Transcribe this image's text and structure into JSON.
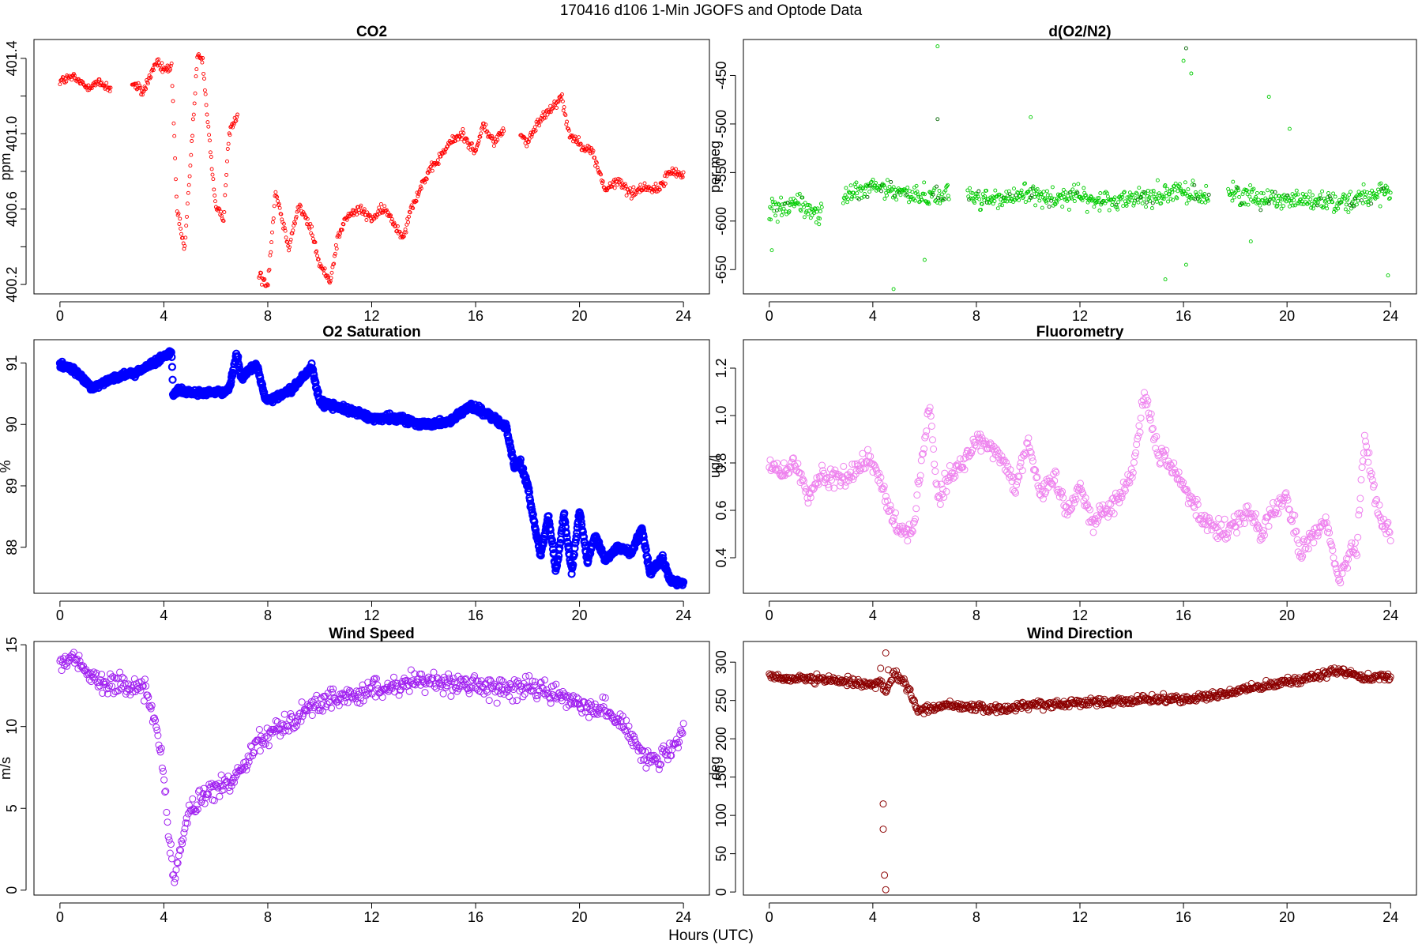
{
  "figure": {
    "title": "170416   d106   1-Min  JGOFS and Optode Data",
    "xlabel": "Hours (UTC)"
  },
  "chart_data": [
    {
      "type": "scatter",
      "title": "CO2",
      "ylabel": "ppm",
      "color": "#ff0000",
      "marker": "small-circle",
      "xlim": [
        -1,
        25
      ],
      "ylim": [
        400.15,
        401.5
      ],
      "xticks": [
        0,
        4,
        8,
        12,
        16,
        20,
        24
      ],
      "yticks": [
        400.2,
        400.4,
        400.6,
        400.8,
        401.0,
        401.2,
        401.4
      ],
      "ytick_labels": [
        "400.2",
        "",
        "400.6",
        "",
        "401.0",
        "",
        "401.4"
      ],
      "gaps": [
        [
          1.95,
          2.75
        ],
        [
          6.85,
          7.65
        ],
        [
          17.1,
          17.7
        ]
      ],
      "x": [
        0,
        0.5,
        1,
        1.5,
        1.95,
        2.75,
        3.2,
        3.7,
        4,
        4.3,
        4.5,
        4.8,
        5,
        5.3,
        5.5,
        5.7,
        6,
        6.3,
        6.5,
        6.85,
        7.65,
        8,
        8.3,
        8.8,
        9.2,
        9.7,
        10,
        10.4,
        10.7,
        11,
        11.5,
        12,
        12.5,
        13.2,
        13.5,
        14,
        14.5,
        15,
        15.5,
        16,
        16.3,
        16.7,
        17.1,
        17.7,
        18,
        18.5,
        19,
        19.3,
        19.6,
        20,
        20.5,
        21,
        21.5,
        22,
        22.5,
        23,
        23.5,
        24
      ],
      "y": [
        401.28,
        401.3,
        401.25,
        401.27,
        401.24,
        401.27,
        401.22,
        401.38,
        401.34,
        401.35,
        400.6,
        400.38,
        400.8,
        401.42,
        401.38,
        401.05,
        400.6,
        400.55,
        401.0,
        401.1,
        400.25,
        400.2,
        400.7,
        400.4,
        400.62,
        400.48,
        400.3,
        400.22,
        400.45,
        400.55,
        400.6,
        400.55,
        400.6,
        400.45,
        400.6,
        400.75,
        400.85,
        400.95,
        401.0,
        400.9,
        401.05,
        400.95,
        401.03,
        401.0,
        400.95,
        401.08,
        401.15,
        401.2,
        401.0,
        400.95,
        400.9,
        400.7,
        400.75,
        400.68,
        400.72,
        400.7,
        400.8,
        400.78
      ],
      "noise": 0.025
    },
    {
      "type": "scatter",
      "title": "d(O2/N2)",
      "ylabel": "per meg",
      "color": "#00cc00",
      "marker": "small-circle",
      "xlim": [
        -1,
        25
      ],
      "ylim": [
        -675,
        -413
      ],
      "xticks": [
        0,
        4,
        8,
        12,
        16,
        20,
        24
      ],
      "yticks": [
        -650,
        -600,
        -550,
        -500,
        -450
      ],
      "ytick_labels": [
        "-650",
        "-600",
        "-550",
        "-500",
        "-450"
      ],
      "gaps": [
        [
          2.05,
          2.85
        ],
        [
          6.95,
          7.65
        ],
        [
          17.0,
          17.7
        ]
      ],
      "x": [
        0,
        1,
        2.05,
        2.85,
        4,
        5,
        6,
        6.95,
        7.65,
        9,
        10,
        11,
        12,
        12.5,
        13.5,
        14.5,
        15.5,
        16,
        17.0,
        17.7,
        18.5,
        19.5,
        20.5,
        21.5,
        22.5,
        23,
        24
      ],
      "y": [
        -590,
        -580,
        -595,
        -575,
        -565,
        -570,
        -575,
        -570,
        -575,
        -578,
        -572,
        -576,
        -574,
        -580,
        -578,
        -575,
        -572,
        -570,
        -575,
        -570,
        -575,
        -576,
        -578,
        -580,
        -578,
        -574,
        -572
      ],
      "noise": 10,
      "outliers": [
        [
          6.5,
          -420
        ],
        [
          6.5,
          -495
        ],
        [
          16.1,
          -422
        ],
        [
          16.3,
          -448
        ],
        [
          16.0,
          -435
        ],
        [
          15.3,
          -660
        ],
        [
          16.1,
          -645
        ],
        [
          4.8,
          -670
        ],
        [
          10.1,
          -493
        ],
        [
          19.3,
          -472
        ],
        [
          20.1,
          -505
        ],
        [
          6.0,
          -640
        ],
        [
          18.6,
          -621
        ],
        [
          23.9,
          -656
        ],
        [
          0.1,
          -630
        ]
      ]
    },
    {
      "type": "scatter",
      "title": "O2 Saturation",
      "ylabel": "%",
      "color": "#0000ff",
      "marker": "thick-circle",
      "xlim": [
        -1,
        25
      ],
      "ylim": [
        87.25,
        91.38
      ],
      "xticks": [
        0,
        4,
        8,
        12,
        16,
        20,
        24
      ],
      "yticks": [
        88,
        89,
        90,
        91
      ],
      "ytick_labels": [
        "88",
        "89",
        "90",
        "91"
      ],
      "x": [
        0,
        0.5,
        1.2,
        2,
        3,
        3.8,
        4.3,
        4.35,
        4.5,
        5.5,
        6.5,
        6.8,
        7.0,
        7.3,
        7.6,
        7.9,
        8.2,
        9,
        9.7,
        10,
        11,
        12,
        13,
        14,
        15,
        15.8,
        16.5,
        17.2,
        17.5,
        17.7,
        18,
        18.3,
        18.5,
        18.8,
        19.1,
        19.4,
        19.7,
        20,
        20.3,
        20.6,
        21,
        21.5,
        22,
        22.4,
        22.7,
        23.2,
        23.5,
        24
      ],
      "y": [
        90.95,
        90.9,
        90.6,
        90.75,
        90.85,
        91.05,
        91.2,
        90.5,
        90.55,
        90.5,
        90.55,
        91.15,
        90.75,
        90.9,
        90.95,
        90.4,
        90.4,
        90.6,
        90.95,
        90.35,
        90.25,
        90.1,
        90.1,
        90.0,
        90.05,
        90.3,
        90.15,
        89.95,
        89.3,
        89.4,
        89.0,
        88.3,
        87.9,
        88.5,
        87.6,
        88.55,
        87.6,
        88.6,
        87.75,
        88.2,
        87.8,
        88.0,
        87.9,
        88.3,
        87.6,
        87.8,
        87.45,
        87.4
      ],
      "noise": 0.05
    },
    {
      "type": "scatter",
      "title": "Fluorometry",
      "ylabel": "ug/l",
      "color": "#ee82ee",
      "marker": "open-circle",
      "xlim": [
        -1,
        25
      ],
      "ylim": [
        0.25,
        1.32
      ],
      "xticks": [
        0,
        4,
        8,
        12,
        16,
        20,
        24
      ],
      "yticks": [
        0.4,
        0.6,
        0.8,
        1.0,
        1.2
      ],
      "ytick_labels": [
        "0.4",
        "0.6",
        "0.8",
        "1.0",
        "1.2"
      ],
      "x": [
        0,
        0.5,
        1,
        1.5,
        2,
        3,
        3.8,
        4.2,
        4.8,
        5.5,
        6.2,
        6.5,
        7,
        7.5,
        8,
        8.5,
        9,
        9.5,
        10,
        10.5,
        11,
        11.5,
        12,
        12.5,
        13,
        13.5,
        14,
        14.5,
        15,
        15.5,
        16,
        16.5,
        17,
        17.5,
        18,
        18.5,
        19,
        19.5,
        20,
        20.5,
        21,
        21.5,
        22,
        22.3,
        22.7,
        23,
        23.5,
        24
      ],
      "y": [
        0.8,
        0.75,
        0.8,
        0.65,
        0.75,
        0.73,
        0.82,
        0.75,
        0.55,
        0.5,
        1.05,
        0.65,
        0.75,
        0.8,
        0.9,
        0.88,
        0.82,
        0.7,
        0.9,
        0.65,
        0.75,
        0.6,
        0.7,
        0.55,
        0.6,
        0.65,
        0.75,
        1.1,
        0.85,
        0.8,
        0.7,
        0.6,
        0.55,
        0.5,
        0.55,
        0.6,
        0.5,
        0.6,
        0.65,
        0.42,
        0.5,
        0.55,
        0.3,
        0.4,
        0.45,
        0.9,
        0.6,
        0.5
      ],
      "noise": 0.04
    },
    {
      "type": "scatter",
      "title": "Wind Speed",
      "ylabel": "m/s",
      "color": "#a020f0",
      "marker": "open-circle",
      "xlim": [
        -1,
        25
      ],
      "ylim": [
        -0.3,
        15.2
      ],
      "xticks": [
        0,
        4,
        8,
        12,
        16,
        20,
        24
      ],
      "yticks": [
        0,
        5,
        10,
        15
      ],
      "ytick_labels": [
        "0",
        "5",
        "10",
        "15"
      ],
      "x": [
        0,
        0.5,
        1,
        1.5,
        2,
        2.5,
        3,
        3.3,
        3.7,
        4,
        4.2,
        4.4,
        4.7,
        5,
        5.5,
        6,
        6.5,
        7,
        7.5,
        8,
        8.5,
        9,
        10,
        11,
        12,
        13,
        14,
        15,
        16,
        17,
        18,
        19,
        20,
        21,
        22,
        22.5,
        23,
        23.5,
        24
      ],
      "y": [
        13.8,
        14.3,
        13.5,
        12.8,
        12.6,
        12.5,
        12.4,
        12.0,
        10.2,
        7.0,
        3.0,
        0.6,
        3.0,
        5.0,
        5.6,
        6.2,
        6.5,
        7.5,
        9.0,
        9.5,
        10.0,
        10.5,
        11.5,
        11.8,
        12.2,
        12.5,
        12.8,
        12.7,
        12.5,
        12.3,
        12.4,
        12.0,
        11.5,
        11.0,
        9.5,
        8.2,
        8.0,
        8.3,
        9.8
      ],
      "noise": 0.6
    },
    {
      "type": "scatter",
      "title": "Wind Direction",
      "ylabel": "deg",
      "color": "#8b0000",
      "marker": "open-circle",
      "xlim": [
        -1,
        25
      ],
      "ylim": [
        -4,
        327
      ],
      "xticks": [
        0,
        4,
        8,
        12,
        16,
        20,
        24
      ],
      "yticks": [
        0,
        50,
        100,
        150,
        200,
        250,
        300
      ],
      "ytick_labels": [
        "0",
        "50",
        "100",
        "150",
        "200",
        "250",
        "300"
      ],
      "x": [
        0,
        1,
        2,
        3,
        4,
        4.3,
        4.5,
        4.8,
        5.2,
        5.5,
        5.8,
        6.2,
        7,
        8,
        9,
        10,
        11,
        12,
        13,
        14,
        15,
        16,
        17,
        18,
        19,
        20,
        21,
        22,
        22.5,
        23,
        24
      ],
      "y": [
        280,
        278,
        277,
        275,
        270,
        275,
        262,
        285,
        275,
        255,
        235,
        240,
        245,
        240,
        238,
        245,
        245,
        248,
        248,
        250,
        252,
        252,
        255,
        262,
        268,
        275,
        280,
        290,
        285,
        278,
        282
      ],
      "noise": 5,
      "outliers": [
        [
          4.5,
          312
        ],
        [
          4.4,
          115
        ],
        [
          4.4,
          82
        ],
        [
          4.45,
          22
        ],
        [
          4.5,
          3
        ],
        [
          4.3,
          292
        ],
        [
          4.6,
          290
        ]
      ]
    }
  ]
}
